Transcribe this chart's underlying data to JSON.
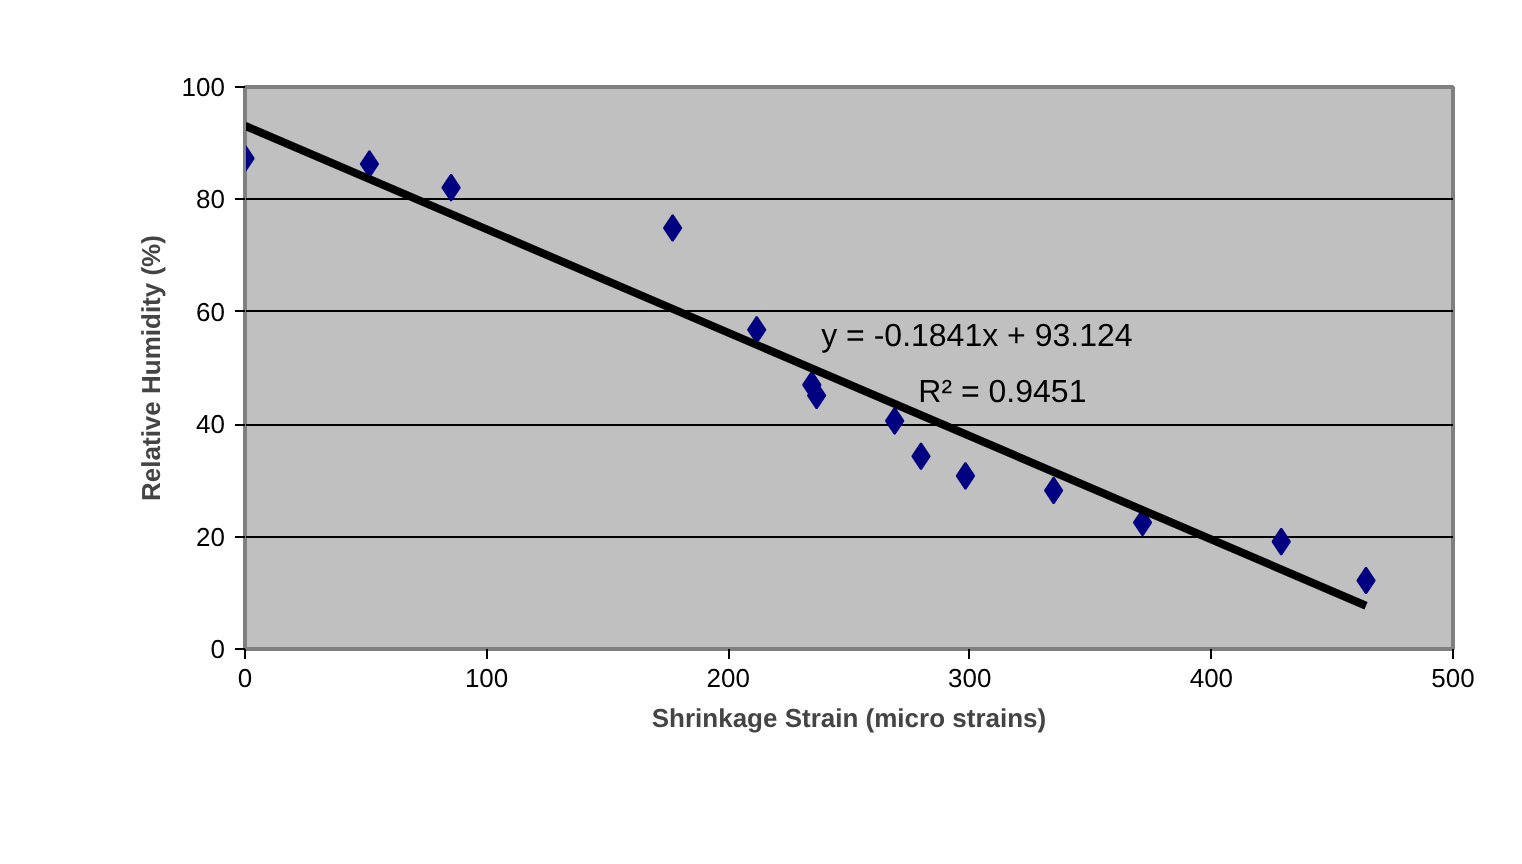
{
  "chart_data": {
    "type": "scatter",
    "xlabel": "Shrinkage Strain (micro strains)",
    "ylabel": "Relative Humidity (%)",
    "xlim": [
      0,
      500
    ],
    "xticks": [
      0,
      100,
      200,
      300,
      400,
      500
    ],
    "ylim": [
      0,
      100
    ],
    "yticks": [
      0,
      20,
      40,
      60,
      80,
      100
    ],
    "grid": "y",
    "marker": "diamond",
    "series": [
      {
        "color": "#000080",
        "x": [
          0,
          51.5,
          85.3,
          177,
          211.8,
          234.6,
          236.6,
          268.9,
          279.8,
          298.2,
          334.7,
          371.5,
          428.9,
          464
        ],
        "values": [
          87.3,
          86.3,
          82.1,
          74.9,
          56.8,
          47.0,
          45.1,
          40.6,
          34.3,
          30.8,
          28.2,
          22.5,
          19.1,
          12.2
        ]
      },
      {
        "type": "line",
        "marker": "none",
        "color": "#000000",
        "x": [
          0,
          464
        ],
        "values": [
          93.1,
          7.7
        ]
      }
    ],
    "annotations": [
      "y = -0.1841x + 93.124",
      "R² = 0.9451"
    ]
  }
}
